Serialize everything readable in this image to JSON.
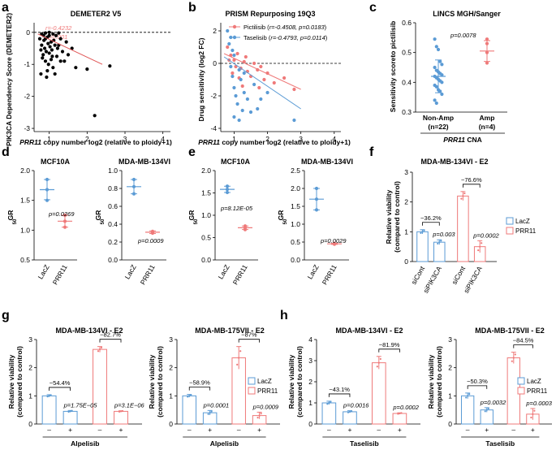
{
  "colors": {
    "blue": "#5b9bd5",
    "red": "#ef7a7a",
    "black": "#000000"
  },
  "panel_labels": [
    "a",
    "b",
    "c",
    "d",
    "e",
    "f",
    "g",
    "h"
  ],
  "chart_data": [
    {
      "id": "a",
      "type": "scatter",
      "title": "DEMETER2 V5",
      "xlabel_gene": "PRR11",
      "xlabel_rest": " copy number log2 (relative to ploidy+1)",
      "ylabel": "PIK3CA Dependency Score (DEMETER2)",
      "xlim": [
        0.6,
        4.2
      ],
      "ylim": [
        -3.1,
        0.3
      ],
      "xticks": [
        "1",
        "2",
        "3",
        "4"
      ],
      "yticks": [
        "0",
        "-1",
        "-2",
        "-3"
      ],
      "stats": {
        "r": "r=-0.4232",
        "p": "p=0.001"
      },
      "points": [
        [
          0.8,
          -0.05
        ],
        [
          0.85,
          -0.1
        ],
        [
          0.9,
          -0.2
        ],
        [
          0.95,
          -0.15
        ],
        [
          1.0,
          -0.1
        ],
        [
          1.05,
          -0.3
        ],
        [
          1.1,
          -0.05
        ],
        [
          0.8,
          -0.4
        ],
        [
          0.88,
          -0.5
        ],
        [
          0.92,
          -0.6
        ],
        [
          0.97,
          -0.35
        ],
        [
          1.02,
          -0.45
        ],
        [
          1.07,
          -0.55
        ],
        [
          1.12,
          -0.25
        ],
        [
          1.18,
          -0.1
        ],
        [
          1.25,
          -0.4
        ],
        [
          1.3,
          -0.2
        ],
        [
          1.35,
          -0.6
        ],
        [
          1.45,
          -0.3
        ],
        [
          0.82,
          -0.8
        ],
        [
          0.9,
          -0.9
        ],
        [
          0.98,
          -1.0
        ],
        [
          1.05,
          -0.85
        ],
        [
          1.1,
          -1.1
        ],
        [
          1.2,
          -0.75
        ],
        [
          1.3,
          -0.9
        ],
        [
          0.78,
          -1.3
        ],
        [
          0.95,
          -1.2
        ],
        [
          1.15,
          -1.3
        ],
        [
          1.5,
          -0.7
        ],
        [
          1.6,
          -0.5
        ],
        [
          1.7,
          -1.1
        ],
        [
          2.0,
          -1.15
        ],
        [
          2.6,
          -1.05
        ],
        [
          2.2,
          -2.6
        ],
        [
          0.86,
          -0.25
        ],
        [
          1.0,
          -0.65
        ],
        [
          1.08,
          -0.75
        ],
        [
          1.22,
          -0.5
        ],
        [
          0.93,
          -1.4
        ],
        [
          1.4,
          -0.9
        ],
        [
          0.84,
          -0.7
        ],
        [
          1.15,
          -0.4
        ],
        [
          1.0,
          0.0
        ],
        [
          0.9,
          -0.02
        ],
        [
          1.25,
          -0.02
        ],
        [
          0.75,
          -0.2
        ],
        [
          0.78,
          -0.55
        ]
      ],
      "fit": [
        [
          0.7,
          -0.05
        ],
        [
          2.4,
          -1.0
        ]
      ]
    },
    {
      "id": "b",
      "type": "scatter",
      "title": "PRISM Repurposing 19Q3",
      "xlabel_gene": "PRR11",
      "xlabel_rest": " copy number log2 (relative to ploidy+1)",
      "ylabel": "Drug sensitivity (log2 FC)",
      "xlim": [
        0.6,
        4.2
      ],
      "ylim": [
        -4.2,
        2.5
      ],
      "xticks": [
        "1",
        "2",
        "3",
        "4"
      ],
      "yticks": [
        "2",
        "0",
        "-2",
        "-4"
      ],
      "series": [
        {
          "name": "Pictilisib",
          "stat": "r=-0.4508, p=0.0183",
          "color": "#ef7a7a",
          "points": [
            [
              0.8,
              1.0
            ],
            [
              0.9,
              0.5
            ],
            [
              1.0,
              0.2
            ],
            [
              1.05,
              -0.2
            ],
            [
              1.1,
              0.6
            ],
            [
              1.2,
              -0.3
            ],
            [
              1.3,
              0.1
            ],
            [
              1.4,
              -0.5
            ],
            [
              1.5,
              -0.8
            ],
            [
              1.6,
              0.0
            ],
            [
              1.7,
              -0.4
            ],
            [
              1.9,
              -1.0
            ],
            [
              2.0,
              -0.6
            ],
            [
              2.2,
              -1.2
            ],
            [
              2.5,
              -0.9
            ],
            [
              0.95,
              -0.6
            ],
            [
              1.15,
              -0.9
            ],
            [
              1.25,
              -1.4
            ],
            [
              0.85,
              0.2
            ],
            [
              1.75,
              -1.5
            ],
            [
              2.8,
              -1.6
            ],
            [
              1.35,
              0.4
            ],
            [
              1.8,
              -0.2
            ]
          ],
          "fit": [
            [
              0.7,
              0.6
            ],
            [
              3.0,
              -1.6
            ]
          ]
        },
        {
          "name": "Taselisib",
          "stat": "r=-0.4793, p=0.0114",
          "color": "#5b9bd5",
          "points": [
            [
              0.8,
              2.0
            ],
            [
              0.85,
              1.2
            ],
            [
              0.9,
              -0.2
            ],
            [
              0.95,
              -0.8
            ],
            [
              1.0,
              -1.5
            ],
            [
              1.05,
              -2.0
            ],
            [
              1.1,
              -2.5
            ],
            [
              1.15,
              -3.5
            ],
            [
              1.2,
              -1.0
            ],
            [
              1.3,
              -1.8
            ],
            [
              1.4,
              -2.2
            ],
            [
              1.5,
              -3.0
            ],
            [
              1.6,
              -1.3
            ],
            [
              1.7,
              -2.8
            ],
            [
              1.8,
              -2.2
            ],
            [
              1.0,
              0.5
            ],
            [
              1.15,
              -0.4
            ],
            [
              0.95,
              0.8
            ],
            [
              1.3,
              -0.6
            ],
            [
              2.0,
              -1.8
            ],
            [
              2.8,
              -3.5
            ],
            [
              1.0,
              -3.3
            ],
            [
              1.25,
              -2.9
            ],
            [
              0.9,
              1.6
            ]
          ],
          "fit": [
            [
              0.7,
              0.4
            ],
            [
              3.0,
              -2.8
            ]
          ]
        }
      ]
    },
    {
      "id": "c",
      "type": "scatter",
      "title": "LINCS MGH/Sanger",
      "ylabel": "Sensitivity scoreto pictilisib",
      "ylim": [
        0.3,
        0.6
      ],
      "yticks": [
        "0.3",
        "0.4",
        "0.5",
        "0.6"
      ],
      "categories": [
        "Non-Amp",
        "Amp"
      ],
      "category_n": [
        "(n=22)",
        "(n=4)"
      ],
      "xlabel_gene": "PRR11",
      "xlabel_rest": " CNA",
      "p": "p=0.0078",
      "groups": [
        {
          "color": "#5b9bd5",
          "mean": 0.42,
          "sd": 0.055,
          "points": [
            0.545,
            0.52,
            0.51,
            0.47,
            0.46,
            0.45,
            0.44,
            0.435,
            0.43,
            0.425,
            0.42,
            0.415,
            0.41,
            0.405,
            0.4,
            0.39,
            0.385,
            0.375,
            0.37,
            0.36,
            0.34,
            0.33
          ]
        },
        {
          "color": "#ef7a7a",
          "mean": 0.505,
          "sd": 0.035,
          "points": [
            0.545,
            0.53,
            0.5,
            0.465
          ]
        }
      ]
    },
    {
      "id": "d",
      "type": "scatter",
      "ylabel": "GR50",
      "titles": [
        "MCF10A",
        "MDA-MB-134VI"
      ],
      "categories": [
        "LacZ",
        "PRR11"
      ],
      "subplots": [
        {
          "title": "MCF10A",
          "ylim": [
            0.5,
            2.0
          ],
          "yticks": [
            "0.5",
            "1.0",
            "1.5",
            "2.0"
          ],
          "p": "p=0.0269",
          "groups": [
            {
              "color": "#5b9bd5",
              "mean": 1.68,
              "sd": 0.17,
              "points": [
                1.85,
                1.68,
                1.5
              ]
            },
            {
              "color": "#ef7a7a",
              "mean": 1.15,
              "sd": 0.1,
              "points": [
                1.25,
                1.15,
                1.05
              ]
            }
          ]
        },
        {
          "title": "MDA-MB-134VI",
          "ylim": [
            0.0,
            1.0
          ],
          "yticks": [
            "0.0",
            "0.2",
            "0.4",
            "0.6",
            "0.8",
            "1.0"
          ],
          "p": "p=0.0009",
          "groups": [
            {
              "color": "#5b9bd5",
              "mean": 0.82,
              "sd": 0.08,
              "points": [
                0.9,
                0.82,
                0.74
              ]
            },
            {
              "color": "#ef7a7a",
              "mean": 0.31,
              "sd": 0.015,
              "points": [
                0.32,
                0.31,
                0.3
              ]
            }
          ]
        }
      ]
    },
    {
      "id": "e",
      "type": "scatter",
      "ylabel": "GR50",
      "titles": [
        "MCF10A",
        "MDA-MB-134VI"
      ],
      "categories": [
        "LacZ",
        "PRR11"
      ],
      "subplots": [
        {
          "title": "MCF10A",
          "ylim": [
            0.0,
            2.0
          ],
          "yticks": [
            "0.0",
            "0.5",
            "1.0",
            "1.5",
            "2.0"
          ],
          "p": "p=8.12E-05",
          "groups": [
            {
              "color": "#5b9bd5",
              "mean": 1.58,
              "sd": 0.07,
              "points": [
                1.65,
                1.58,
                1.51
              ]
            },
            {
              "color": "#ef7a7a",
              "mean": 0.72,
              "sd": 0.04,
              "points": [
                0.76,
                0.72,
                0.68
              ]
            }
          ]
        },
        {
          "title": "MDA-MB-134VI",
          "ylim": [
            0.0,
            2.5
          ],
          "yticks": [
            "0.0",
            "0.5",
            "1.0",
            "1.5",
            "2.0",
            "2.5"
          ],
          "p": "p=0.0029",
          "groups": [
            {
              "color": "#5b9bd5",
              "mean": 1.7,
              "sd": 0.3,
              "points": [
                2.0,
                1.7,
                1.4
              ]
            },
            {
              "color": "#ef7a7a",
              "mean": 0.45,
              "sd": 0.015,
              "points": [
                0.46,
                0.45,
                0.44
              ]
            }
          ]
        }
      ]
    },
    {
      "id": "f",
      "type": "bar",
      "title": "MDA-MB-134VI - E2",
      "ylabel": "Relative viability (compared to control)",
      "ylim": [
        0,
        3
      ],
      "yticks": [
        "0",
        "1",
        "2",
        "3"
      ],
      "categories": [
        "siCont",
        "siPIK3CA",
        "siCont",
        "siPIK3CA"
      ],
      "legend": [
        "LacZ",
        "PRR11"
      ],
      "values": [
        1.0,
        0.65,
        2.2,
        0.5
      ],
      "errors": [
        0.07,
        0.08,
        0.15,
        0.2
      ],
      "colors": [
        "#5b9bd5",
        "#5b9bd5",
        "#ef7a7a",
        "#ef7a7a"
      ],
      "pct": [
        "−36.2%",
        "−76.6%"
      ],
      "p": [
        "p=0.003",
        "p=0.0002"
      ]
    },
    {
      "id": "g",
      "type": "bar",
      "xlabel": "Alpelisib",
      "ylabel": "Relative viability (compared to control)",
      "categories": [
        "–",
        "+",
        "–",
        "+"
      ],
      "legend": [
        "LacZ",
        "PRR11"
      ],
      "subplots": [
        {
          "title": "MDA-MB-134VI - E2",
          "ylim": [
            0,
            3
          ],
          "yticks": [
            "0",
            "1",
            "2",
            "3"
          ],
          "values": [
            1.0,
            0.45,
            2.65,
            0.45
          ],
          "errors": [
            0.04,
            0.03,
            0.1,
            0.02
          ],
          "pct": [
            "−54.4%",
            "−82.7%"
          ],
          "p": [
            "p=1.75E−05",
            "p=3.1E−06"
          ]
        },
        {
          "title": "MDA-MB-175VII - E2",
          "ylim": [
            0,
            3
          ],
          "yticks": [
            "0",
            "1",
            "2",
            "3"
          ],
          "values": [
            1.0,
            0.4,
            2.35,
            0.3
          ],
          "errors": [
            0.05,
            0.08,
            0.4,
            0.12
          ],
          "pct": [
            "−58.9%",
            "−87%"
          ],
          "p": [
            "p=0.0001",
            "p=0.0009"
          ]
        }
      ]
    },
    {
      "id": "h",
      "type": "bar",
      "xlabel": "Taselisib",
      "ylabel": "Relative viability (compared to control)",
      "categories": [
        "–",
        "+",
        "–",
        "+"
      ],
      "legend": [
        "LacZ",
        "PRR11"
      ],
      "subplots": [
        {
          "title": "MDA-MB-134VI - E2",
          "ylim": [
            0,
            4
          ],
          "yticks": [
            "0",
            "1",
            "2",
            "3",
            "4"
          ],
          "values": [
            1.0,
            0.58,
            2.9,
            0.5
          ],
          "errors": [
            0.08,
            0.05,
            0.3,
            0.03
          ],
          "pct": [
            "−43.1%",
            "−81.9%"
          ],
          "p": [
            "p=0.0016",
            "p=0.0002"
          ]
        },
        {
          "title": "MDA-MB-175VII - E2",
          "ylim": [
            0,
            3
          ],
          "yticks": [
            "0",
            "1",
            "2",
            "3"
          ],
          "values": [
            1.0,
            0.5,
            2.35,
            0.35
          ],
          "errors": [
            0.1,
            0.08,
            0.2,
            0.2
          ],
          "pct": [
            "−50.3%",
            "−84.5%"
          ],
          "p": [
            "p=0.0032",
            "p=0.0003"
          ]
        }
      ]
    }
  ]
}
